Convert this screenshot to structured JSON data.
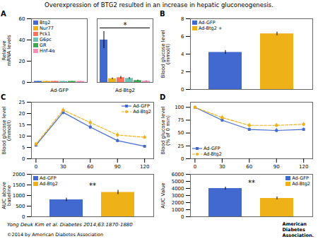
{
  "title": "Overexpression of BTG2 resulted in an increase in hepatic gluconeogenesis.",
  "subtitle": "Yong Deuk Kim et al. Diabetes 2014;63:1870-1880",
  "annotations": [
    "©2014 by American Diabetes Association",
    "American",
    "Diabetes",
    "Association."
  ],
  "chart_data": [
    {
      "type": "bar",
      "title": "A",
      "categories": [
        "Ad-GFP",
        "Ad-Btg2"
      ],
      "series": [
        {
          "name": "Btg2",
          "values": [
            1.0,
            40.0
          ],
          "errors": [
            0.1,
            8.0
          ]
        },
        {
          "name": "Nur77",
          "values": [
            1.0,
            3.5
          ],
          "errors": [
            0.1,
            0.8
          ]
        },
        {
          "name": "Pck1",
          "values": [
            1.0,
            4.5
          ],
          "errors": [
            0.1,
            1.2
          ]
        },
        {
          "name": "G6pc",
          "values": [
            1.0,
            3.8
          ],
          "errors": [
            0.1,
            0.9
          ]
        },
        {
          "name": "GR",
          "values": [
            1.0,
            1.8
          ],
          "errors": [
            0.1,
            0.4
          ]
        },
        {
          "name": "Hnf-4α",
          "values": [
            1.0,
            1.2
          ],
          "errors": [
            0.1,
            0.3
          ]
        }
      ],
      "ylabel": "Relative\nmRNA levels",
      "ylim": [
        0,
        60
      ],
      "yticks": [
        0,
        20,
        40,
        60
      ],
      "legend": "upper left",
      "grid": false,
      "annotations": [
        {
          "text": "*",
          "category": "Ad-Btg2"
        }
      ]
    },
    {
      "type": "bar",
      "title": "B",
      "categories": [
        "Ad-GFP",
        "Ad-Btg2 +"
      ],
      "values": [
        4.2,
        6.3
      ],
      "errors": [
        0.2,
        0.2
      ],
      "ylabel": "Blood glucose level\n(mmol/l)",
      "ylim": [
        0,
        8
      ],
      "yticks": [
        0,
        2,
        4,
        6,
        8
      ],
      "legend": "upper left",
      "tick_labels": "y",
      "grid": false
    },
    {
      "type": "line",
      "title": "C",
      "x": [
        0,
        30,
        60,
        90,
        120
      ],
      "series": [
        {
          "name": "Ad-GFP",
          "values": [
            6.0,
            20.5,
            14.0,
            8.0,
            5.5
          ],
          "errors": [
            0.5,
            1.0,
            1.0,
            0.8,
            0.5
          ],
          "marker": "square",
          "line_style": "solid"
        },
        {
          "name": "Ad-Btg2",
          "values": [
            6.5,
            21.5,
            16.0,
            10.5,
            9.5
          ],
          "errors": [
            0.5,
            1.0,
            1.2,
            1.0,
            0.8
          ],
          "marker": "circle",
          "line_style": "dashed"
        }
      ],
      "ylabel": "Blood glucose level\n(mmol/l)",
      "xlim": [
        -5,
        130
      ],
      "xticks": [
        0,
        30,
        60,
        90,
        120
      ],
      "ylim": [
        0,
        25
      ],
      "yticks": [
        0,
        5,
        10,
        15,
        20,
        25
      ],
      "legend": "upper right",
      "grid": false
    },
    {
      "type": "bar",
      "categories": [
        "Ad-GFP",
        "Ad-Btg2"
      ],
      "values": [
        800,
        1150
      ],
      "errors": [
        80,
        100
      ],
      "ylabel": "AUC above\nbaseline",
      "ylim": [
        0,
        2000
      ],
      "yticks": [
        0,
        500,
        1000,
        1500,
        2000
      ],
      "legend": "upper left",
      "tick_labels": "y",
      "grid": false,
      "annotations": [
        {
          "text": "**"
        }
      ]
    },
    {
      "type": "line",
      "title": "D",
      "x": [
        0,
        30,
        60,
        90,
        120
      ],
      "series": [
        {
          "name": "Ad-GFP",
          "values": [
            100,
            75,
            57,
            55,
            57
          ],
          "errors": [
            2,
            3,
            3,
            4,
            3
          ],
          "marker": "square",
          "line_style": "solid"
        },
        {
          "name": "Ad-Btg2",
          "values": [
            100,
            80,
            65,
            65,
            67
          ],
          "errors": [
            2,
            4,
            4,
            4,
            4
          ],
          "marker": "circle",
          "line_style": "dashed"
        }
      ],
      "ylabel": "Blood glucose level\n(% of 0 min)",
      "xlim": [
        -5,
        130
      ],
      "xticks": [
        0,
        30,
        60,
        90,
        120
      ],
      "ylim": [
        0,
        110
      ],
      "yticks": [
        0,
        25,
        50,
        75,
        100
      ],
      "legend": "lower left",
      "grid": false
    },
    {
      "type": "bar",
      "categories": [
        "Ad-GFP",
        "Ad-Btg2"
      ],
      "values": [
        4000,
        2600
      ],
      "errors": [
        200,
        200
      ],
      "ylabel": "AUC Value",
      "ylim": [
        0,
        6000
      ],
      "yticks": [
        0,
        1000,
        2000,
        3000,
        4000,
        5000,
        6000
      ],
      "legend": "upper right",
      "tick_labels": "y",
      "grid": false,
      "annotations": [
        {
          "text": "**"
        }
      ]
    }
  ]
}
